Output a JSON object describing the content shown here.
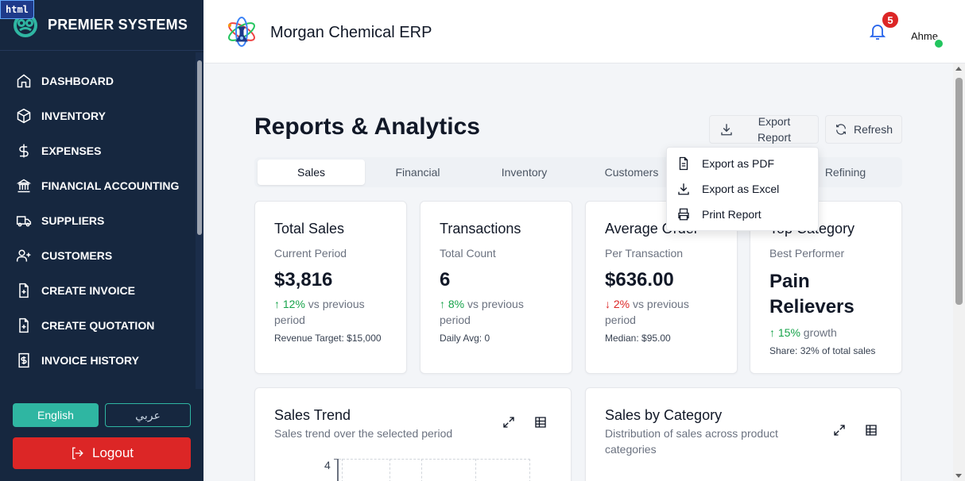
{
  "brand": {
    "name": "PREMIER SYSTEMS",
    "tag": "html"
  },
  "sidebar": {
    "items": [
      {
        "label": "DASHBOARD",
        "icon": "home-icon"
      },
      {
        "label": "INVENTORY",
        "icon": "box-icon"
      },
      {
        "label": "EXPENSES",
        "icon": "dollar-icon"
      },
      {
        "label": "FINANCIAL ACCOUNTING",
        "icon": "bank-icon"
      },
      {
        "label": "SUPPLIERS",
        "icon": "truck-icon"
      },
      {
        "label": "CUSTOMERS",
        "icon": "user-plus-icon"
      },
      {
        "label": "CREATE INVOICE",
        "icon": "file-plus-icon"
      },
      {
        "label": "CREATE QUOTATION",
        "icon": "file-plus-icon"
      },
      {
        "label": "INVOICE HISTORY",
        "icon": "file-dollar-icon"
      }
    ],
    "lang_en": "English",
    "lang_ar": "عربي",
    "logout": "Logout"
  },
  "header": {
    "app_title": "Morgan Chemical ERP",
    "notification_count": "5",
    "avatar_alt": "Ahme"
  },
  "page": {
    "title": "Reports & Analytics",
    "export_label": "Export Report",
    "refresh_label": "Refresh"
  },
  "tabs": [
    "Sales",
    "Financial",
    "Inventory",
    "Customers",
    "",
    "Refining"
  ],
  "export_menu": {
    "items": [
      {
        "label": "Export as PDF",
        "icon": "file-text-icon"
      },
      {
        "label": "Export as Excel",
        "icon": "download-icon"
      },
      {
        "label": "Print Report",
        "icon": "printer-icon"
      }
    ]
  },
  "stats": [
    {
      "title": "Total Sales",
      "subtitle": "Current Period",
      "value": "$3,816",
      "change": "↑ 12%",
      "change_dir": "up",
      "change_suffix": " vs previous period",
      "footer": "Revenue Target: $15,000"
    },
    {
      "title": "Transactions",
      "subtitle": "Total Count",
      "value": "6",
      "change": "↑ 8%",
      "change_dir": "up",
      "change_suffix": " vs previous period",
      "footer": "Daily Avg: 0"
    },
    {
      "title": "Average Order",
      "subtitle": "Per Transaction",
      "value": "$636.00",
      "change": "↓ 2%",
      "change_dir": "down",
      "change_suffix": " vs previous period",
      "footer": "Median: $95.00"
    },
    {
      "title": "Top Category",
      "subtitle": "Best Performer",
      "value": "Pain Relievers",
      "change": "↑ 15%",
      "change_dir": "up",
      "change_suffix": " growth",
      "footer": "Share: 32% of total sales"
    }
  ],
  "charts": {
    "sales_trend": {
      "title": "Sales Trend",
      "subtitle": "Sales trend over the selected period",
      "y_top_label": "4"
    },
    "sales_by_category": {
      "title": "Sales by Category",
      "subtitle": "Distribution of sales across product categories"
    }
  },
  "colors": {
    "sidebar": "#16273f",
    "accent": "#2fb6a2",
    "danger": "#dc2626",
    "positive": "#16a34a",
    "bell": "#2563eb"
  }
}
